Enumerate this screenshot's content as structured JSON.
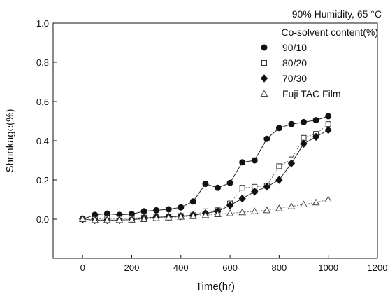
{
  "chart_data": {
    "type": "scatter",
    "condition_label": "90% Humidity, 65 °C",
    "legend_title": "Co-solvent content(%)",
    "legend_position": "top-right",
    "xlabel": "Time(hr)",
    "ylabel": "Shrinkage(%)",
    "xlim": [
      -120,
      1200
    ],
    "ylim": [
      -0.2,
      1.0
    ],
    "xticks": [
      0,
      200,
      400,
      600,
      800,
      1000,
      1200
    ],
    "yticks": [
      0.0,
      0.2,
      0.4,
      0.6,
      0.8,
      1.0
    ],
    "xtick_labels": [
      "0",
      "200",
      "400",
      "600",
      "800",
      "1000",
      "1200"
    ],
    "ytick_labels": [
      "0.0",
      "0.2",
      "0.4",
      "0.6",
      "0.8",
      "1.0"
    ],
    "grid": false,
    "series": [
      {
        "name": "90/10",
        "marker": "filled-circle",
        "line": "solid",
        "color": "#111111",
        "x": [
          0,
          50,
          100,
          150,
          200,
          250,
          300,
          350,
          400,
          450,
          500,
          550,
          600,
          650,
          700,
          750,
          800,
          850,
          900,
          950,
          1000
        ],
        "y": [
          0.0,
          0.022,
          0.028,
          0.022,
          0.026,
          0.04,
          0.045,
          0.05,
          0.06,
          0.09,
          0.18,
          0.16,
          0.185,
          0.29,
          0.3,
          0.41,
          0.465,
          0.485,
          0.495,
          0.505,
          0.525
        ]
      },
      {
        "name": "80/20",
        "marker": "open-square",
        "line": "dotted",
        "color": "#111111",
        "x": [
          0,
          50,
          100,
          150,
          200,
          250,
          300,
          350,
          400,
          450,
          500,
          550,
          600,
          650,
          700,
          750,
          800,
          850,
          900,
          950,
          1000
        ],
        "y": [
          0.0,
          0.0,
          0.005,
          0.002,
          0.005,
          0.008,
          0.01,
          0.012,
          0.016,
          0.02,
          0.04,
          0.045,
          0.08,
          0.16,
          0.165,
          0.17,
          0.27,
          0.305,
          0.415,
          0.435,
          0.485
        ]
      },
      {
        "name": "70/30",
        "marker": "filled-diamond",
        "line": "solid",
        "color": "#111111",
        "x": [
          0,
          50,
          100,
          150,
          200,
          250,
          300,
          350,
          400,
          450,
          500,
          550,
          600,
          650,
          700,
          750,
          800,
          850,
          900,
          950,
          1000
        ],
        "y": [
          0.0,
          -0.005,
          -0.005,
          -0.005,
          -0.002,
          0.005,
          0.01,
          0.012,
          0.015,
          0.02,
          0.03,
          0.04,
          0.07,
          0.105,
          0.14,
          0.165,
          0.2,
          0.285,
          0.385,
          0.42,
          0.455
        ]
      },
      {
        "name": "Fuji TAC Film",
        "marker": "open-triangle",
        "line": "dotted",
        "color": "#111111",
        "x": [
          0,
          50,
          100,
          150,
          200,
          250,
          300,
          350,
          400,
          450,
          500,
          550,
          600,
          650,
          700,
          750,
          800,
          850,
          900,
          950,
          1000
        ],
        "y": [
          0.0,
          -0.005,
          -0.005,
          -0.005,
          -0.003,
          0.0,
          0.005,
          0.008,
          0.012,
          0.015,
          0.02,
          0.025,
          0.03,
          0.035,
          0.04,
          0.045,
          0.055,
          0.065,
          0.075,
          0.085,
          0.1
        ]
      }
    ]
  }
}
